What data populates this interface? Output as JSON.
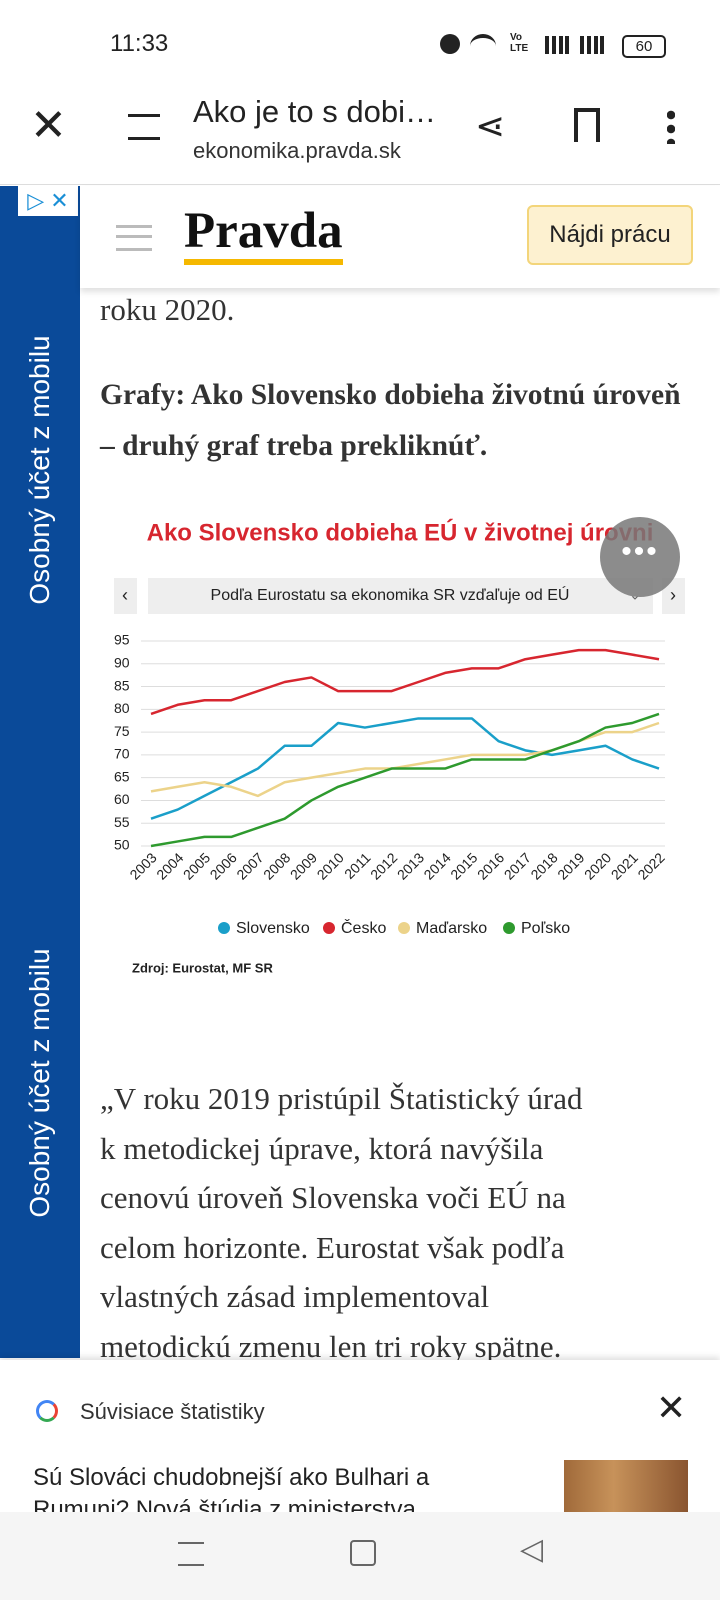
{
  "status_bar": {
    "time": "11:33",
    "network_top": "Vo",
    "network_bottom": "LTE",
    "battery": "60"
  },
  "browser": {
    "title": "Ako je to s dobi…",
    "url": "ekonomika.pravda.sk"
  },
  "ad": {
    "label_1": "Osobný účet z mobilu",
    "label_2": "Osobný účet z mobilu"
  },
  "site_header": {
    "logo": "Pravda",
    "button": "Nájdi prácu"
  },
  "article": {
    "intro": "roku 2020.",
    "heading": "Grafy: Ako Slovensko dobieha životnú úroveň – druhý graf treba prekliknúť.",
    "body_lines": [
      "„V roku 2019 pristúpil Štatistický úrad",
      "k metodickej úprave, ktorá navýšila",
      "cenovú úroveň Slovenska voči EÚ na",
      "celom horizonte. Eurostat však podľa",
      "vlastných zásad implementoval",
      "metodickú zmenu len tri roky spätne."
    ]
  },
  "chart_data": {
    "type": "line",
    "title": "Ako Slovensko dobieha EÚ v životnej úrovni",
    "subtitle": "Podľa Eurostatu sa ekonomika SR vzďaľuje od EÚ",
    "source": "Zdroj: Eurostat, MF SR",
    "categories": [
      "2003",
      "2004",
      "2005",
      "2006",
      "2007",
      "2008",
      "2009",
      "2010",
      "2011",
      "2012",
      "2013",
      "2014",
      "2015",
      "2016",
      "2017",
      "2018",
      "2019",
      "2020",
      "2021",
      "2022"
    ],
    "series": [
      {
        "name": "Slovensko",
        "color": "#1a9fc9",
        "values": [
          56,
          58,
          61,
          64,
          67,
          72,
          72,
          77,
          76,
          77,
          78,
          78,
          78,
          73,
          71,
          70,
          71,
          72,
          69,
          67
        ]
      },
      {
        "name": "Česko",
        "color": "#d7262f",
        "values": [
          79,
          81,
          82,
          82,
          84,
          86,
          87,
          84,
          84,
          84,
          86,
          88,
          89,
          89,
          91,
          92,
          93,
          93,
          92,
          91
        ]
      },
      {
        "name": "Maďarsko",
        "color": "#ecd38a",
        "values": [
          62,
          63,
          64,
          63,
          61,
          64,
          65,
          66,
          67,
          67,
          68,
          69,
          70,
          70,
          70,
          71,
          73,
          75,
          75,
          77
        ]
      },
      {
        "name": "Poľsko",
        "color": "#2e9a2e",
        "values": [
          50,
          51,
          52,
          52,
          54,
          56,
          60,
          63,
          65,
          67,
          67,
          67,
          69,
          69,
          69,
          71,
          73,
          76,
          77,
          79
        ]
      }
    ],
    "ylim": [
      50,
      95
    ],
    "yticks": [
      50,
      55,
      60,
      65,
      70,
      75,
      80,
      85,
      90,
      95
    ],
    "grid": true
  },
  "related": {
    "label": "Súvisiace štatistiky",
    "headline_lines": [
      "Sú Slováci chudobnejší ako Bulhari a",
      "Rumuni? Nová štúdia z ministerstva"
    ]
  }
}
